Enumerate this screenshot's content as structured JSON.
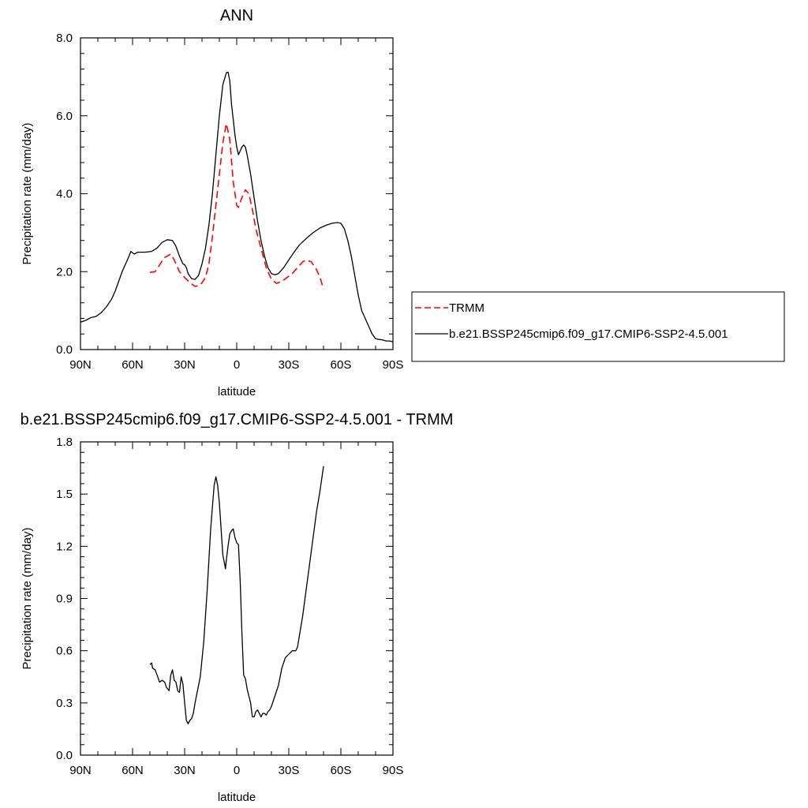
{
  "chart_data": [
    {
      "type": "line",
      "title": "ANN",
      "xlabel": "latitude",
      "ylabel": "Precipitation rate (mm/day)",
      "xlim": [
        90,
        -90
      ],
      "ylim": [
        0,
        8
      ],
      "x_ticks": [
        {
          "value": 90,
          "label": "90N"
        },
        {
          "value": 60,
          "label": "60N"
        },
        {
          "value": 30,
          "label": "30N"
        },
        {
          "value": 0,
          "label": "0"
        },
        {
          "value": -30,
          "label": "30S"
        },
        {
          "value": -60,
          "label": "60S"
        },
        {
          "value": -90,
          "label": "90S"
        }
      ],
      "y_ticks": [
        {
          "value": 0,
          "label": "0.0"
        },
        {
          "value": 2,
          "label": "2.0"
        },
        {
          "value": 4,
          "label": "4.0"
        },
        {
          "value": 6,
          "label": "6.0"
        },
        {
          "value": 8,
          "label": "8.0"
        }
      ],
      "grid": false,
      "legend_position": "right",
      "series": [
        {
          "name": "TRMM",
          "color": "#ff0000",
          "dash": "dashed",
          "points": [
            [
              50,
              1.98
            ],
            [
              47,
              2.0
            ],
            [
              44,
              2.2
            ],
            [
              42,
              2.35
            ],
            [
              38,
              2.45
            ],
            [
              36,
              2.3
            ],
            [
              33,
              2.0
            ],
            [
              30,
              1.85
            ],
            [
              27,
              1.72
            ],
            [
              24,
              1.62
            ],
            [
              21,
              1.65
            ],
            [
              18,
              1.85
            ],
            [
              16,
              2.2
            ],
            [
              14,
              2.9
            ],
            [
              12,
              3.7
            ],
            [
              10,
              4.5
            ],
            [
              8,
              5.3
            ],
            [
              6,
              5.8
            ],
            [
              4,
              5.4
            ],
            [
              2,
              4.3
            ],
            [
              0,
              3.7
            ],
            [
              -1,
              3.65
            ],
            [
              -3,
              3.9
            ],
            [
              -5,
              4.1
            ],
            [
              -7,
              4.0
            ],
            [
              -9,
              3.6
            ],
            [
              -11,
              3.1
            ],
            [
              -14,
              2.6
            ],
            [
              -17,
              2.1
            ],
            [
              -20,
              1.8
            ],
            [
              -23,
              1.7
            ],
            [
              -26,
              1.75
            ],
            [
              -29,
              1.85
            ],
            [
              -32,
              1.95
            ],
            [
              -35,
              2.1
            ],
            [
              -38,
              2.25
            ],
            [
              -40,
              2.3
            ],
            [
              -43,
              2.25
            ],
            [
              -46,
              2.05
            ],
            [
              -48,
              1.85
            ],
            [
              -50,
              1.55
            ]
          ]
        },
        {
          "name": "b.e21.BSSP245cmip6.f09_g17.CMIP6-SSP2-4.5.001",
          "color": "#000000",
          "dash": "solid",
          "points": [
            [
              90,
              0.7
            ],
            [
              87,
              0.75
            ],
            [
              84,
              0.82
            ],
            [
              81,
              0.85
            ],
            [
              78,
              0.95
            ],
            [
              75,
              1.1
            ],
            [
              72,
              1.3
            ],
            [
              70,
              1.5
            ],
            [
              68,
              1.75
            ],
            [
              66,
              2.0
            ],
            [
              64,
              2.2
            ],
            [
              62,
              2.4
            ],
            [
              61,
              2.52
            ],
            [
              59,
              2.45
            ],
            [
              57,
              2.5
            ],
            [
              53,
              2.5
            ],
            [
              49,
              2.52
            ],
            [
              46,
              2.6
            ],
            [
              43,
              2.75
            ],
            [
              40,
              2.82
            ],
            [
              37,
              2.8
            ],
            [
              35,
              2.65
            ],
            [
              33,
              2.4
            ],
            [
              31,
              2.2
            ],
            [
              30,
              2.18
            ],
            [
              29,
              2.1
            ],
            [
              28,
              1.95
            ],
            [
              26,
              1.82
            ],
            [
              24,
              1.8
            ],
            [
              22,
              1.9
            ],
            [
              20,
              2.2
            ],
            [
              18,
              2.6
            ],
            [
              16,
              3.2
            ],
            [
              14,
              4.0
            ],
            [
              12,
              5.0
            ],
            [
              10,
              6.0
            ],
            [
              8,
              6.8
            ],
            [
              6,
              7.1
            ],
            [
              5,
              7.12
            ],
            [
              4,
              6.9
            ],
            [
              3,
              6.3
            ],
            [
              1,
              5.5
            ],
            [
              0,
              5.2
            ],
            [
              -1,
              5.0
            ],
            [
              -2,
              5.1
            ],
            [
              -3,
              5.2
            ],
            [
              -4,
              5.25
            ],
            [
              -5,
              5.2
            ],
            [
              -6,
              5.0
            ],
            [
              -8,
              4.5
            ],
            [
              -10,
              3.9
            ],
            [
              -12,
              3.3
            ],
            [
              -14,
              2.8
            ],
            [
              -16,
              2.4
            ],
            [
              -18,
              2.1
            ],
            [
              -20,
              1.95
            ],
            [
              -22,
              1.92
            ],
            [
              -24,
              1.95
            ],
            [
              -27,
              2.1
            ],
            [
              -30,
              2.3
            ],
            [
              -33,
              2.5
            ],
            [
              -36,
              2.68
            ],
            [
              -40,
              2.85
            ],
            [
              -44,
              3.0
            ],
            [
              -48,
              3.12
            ],
            [
              -52,
              3.2
            ],
            [
              -55,
              3.24
            ],
            [
              -58,
              3.26
            ],
            [
              -60,
              3.24
            ],
            [
              -62,
              3.1
            ],
            [
              -64,
              2.8
            ],
            [
              -66,
              2.4
            ],
            [
              -68,
              1.9
            ],
            [
              -70,
              1.4
            ],
            [
              -72,
              1.0
            ],
            [
              -74,
              0.8
            ],
            [
              -76,
              0.6
            ],
            [
              -78,
              0.4
            ],
            [
              -80,
              0.28
            ],
            [
              -82,
              0.26
            ],
            [
              -84,
              0.25
            ],
            [
              -86,
              0.22
            ],
            [
              -88,
              0.22
            ],
            [
              -90,
              0.2
            ]
          ]
        }
      ]
    },
    {
      "type": "line",
      "title": "b.e21.BSSP245cmip6.f09_g17.CMIP6-SSP2-4.5.001 - TRMM",
      "xlabel": "latitude",
      "ylabel": "Precipitation rate (mm/day)",
      "xlim": [
        90,
        -90
      ],
      "ylim": [
        0,
        1.8
      ],
      "x_ticks": [
        {
          "value": 90,
          "label": "90N"
        },
        {
          "value": 60,
          "label": "60N"
        },
        {
          "value": 30,
          "label": "30N"
        },
        {
          "value": 0,
          "label": "0"
        },
        {
          "value": -30,
          "label": "30S"
        },
        {
          "value": -60,
          "label": "60S"
        },
        {
          "value": -90,
          "label": "90S"
        }
      ],
      "y_ticks": [
        {
          "value": 0,
          "label": "0.0"
        },
        {
          "value": 0.3,
          "label": "0.3"
        },
        {
          "value": 0.6,
          "label": "0.6"
        },
        {
          "value": 0.9,
          "label": "0.9"
        },
        {
          "value": 1.2,
          "label": "1.2"
        },
        {
          "value": 1.5,
          "label": "1.5"
        },
        {
          "value": 1.8,
          "label": "1.8"
        }
      ],
      "grid": false,
      "series": [
        {
          "color": "#000000",
          "dash": "solid",
          "points": [
            [
              50,
              0.52
            ],
            [
              49,
              0.53
            ],
            [
              48.5,
              0.5
            ],
            [
              47,
              0.49
            ],
            [
              45.5,
              0.45
            ],
            [
              44.5,
              0.42
            ],
            [
              43,
              0.43
            ],
            [
              41.5,
              0.42
            ],
            [
              40.5,
              0.39
            ],
            [
              39,
              0.37
            ],
            [
              38,
              0.46
            ],
            [
              37,
              0.49
            ],
            [
              36,
              0.43
            ],
            [
              35,
              0.42
            ],
            [
              34,
              0.37
            ],
            [
              33,
              0.36
            ],
            [
              32,
              0.45
            ],
            [
              31,
              0.41
            ],
            [
              30,
              0.3
            ],
            [
              29,
              0.2
            ],
            [
              28,
              0.18
            ],
            [
              27,
              0.2
            ],
            [
              26,
              0.21
            ],
            [
              25,
              0.24
            ],
            [
              24,
              0.3
            ],
            [
              23,
              0.35
            ],
            [
              21,
              0.45
            ],
            [
              19,
              0.65
            ],
            [
              17,
              0.95
            ],
            [
              15,
              1.3
            ],
            [
              13,
              1.55
            ],
            [
              12,
              1.6
            ],
            [
              11,
              1.55
            ],
            [
              10,
              1.45
            ],
            [
              9,
              1.3
            ],
            [
              8,
              1.15
            ],
            [
              7,
              1.1
            ],
            [
              6.5,
              1.07
            ],
            [
              6,
              1.12
            ],
            [
              5,
              1.2
            ],
            [
              4,
              1.27
            ],
            [
              3,
              1.29
            ],
            [
              2,
              1.3
            ],
            [
              1,
              1.25
            ],
            [
              0,
              1.22
            ],
            [
              -1,
              1.21
            ],
            [
              -2,
              1.0
            ],
            [
              -3,
              0.7
            ],
            [
              -4,
              0.46
            ],
            [
              -5,
              0.44
            ],
            [
              -6,
              0.38
            ],
            [
              -7,
              0.34
            ],
            [
              -8,
              0.3
            ],
            [
              -9,
              0.22
            ],
            [
              -10,
              0.22
            ],
            [
              -11,
              0.25
            ],
            [
              -12,
              0.26
            ],
            [
              -13,
              0.24
            ],
            [
              -14,
              0.22
            ],
            [
              -15,
              0.24
            ],
            [
              -16,
              0.24
            ],
            [
              -17,
              0.23
            ],
            [
              -18,
              0.25
            ],
            [
              -19,
              0.26
            ],
            [
              -20,
              0.28
            ],
            [
              -22,
              0.34
            ],
            [
              -24,
              0.4
            ],
            [
              -26,
              0.5
            ],
            [
              -28,
              0.56
            ],
            [
              -30,
              0.58
            ],
            [
              -32,
              0.6
            ],
            [
              -34,
              0.6
            ],
            [
              -35,
              0.62
            ],
            [
              -36,
              0.68
            ],
            [
              -38,
              0.8
            ],
            [
              -40,
              0.95
            ],
            [
              -42,
              1.1
            ],
            [
              -44,
              1.25
            ],
            [
              -46,
              1.4
            ],
            [
              -48,
              1.52
            ],
            [
              -50,
              1.66
            ]
          ]
        }
      ]
    }
  ]
}
